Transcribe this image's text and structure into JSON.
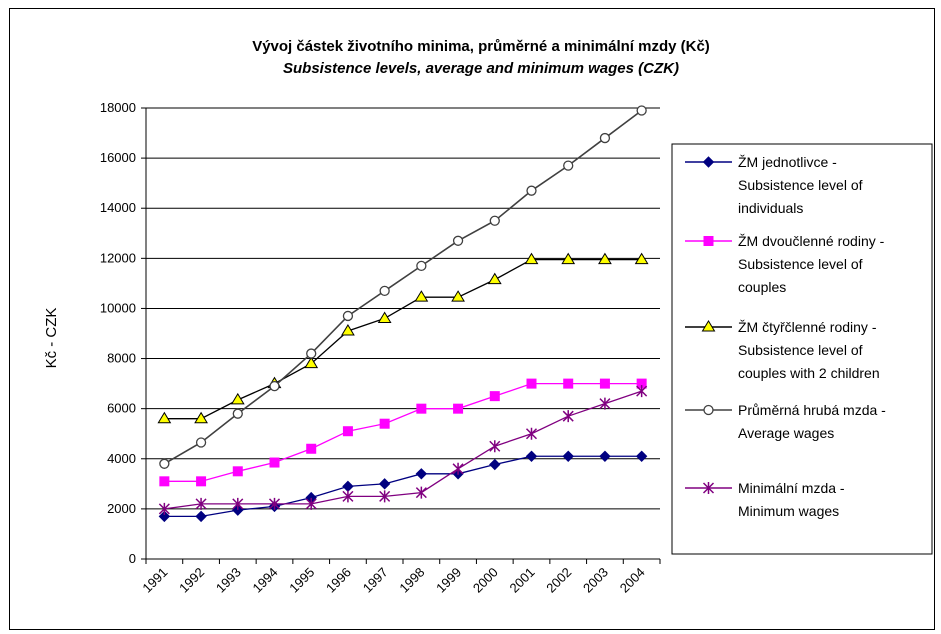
{
  "chart_data": {
    "type": "line",
    "title": "Vývoj částek životního minima, průměrné a minimální mzdy (Kč)",
    "subtitle": "Subsistence levels, average and minimum wages (CZK)",
    "xlabel": "",
    "ylabel": "Kč - CZK",
    "ylim": [
      0,
      18000
    ],
    "yticks": [
      "0",
      "2000",
      "4000",
      "6000",
      "8000",
      "10000",
      "12000",
      "14000",
      "16000",
      "18000"
    ],
    "categories": [
      "1991",
      "1992",
      "1993",
      "1994",
      "1995",
      "1996",
      "1997",
      "1998",
      "1999",
      "2000",
      "2001",
      "2002",
      "2003",
      "2004"
    ],
    "grid": "horizontal",
    "legend_position": "right",
    "series": [
      {
        "name": "ŽM jednotlivce - Subsistence level of individuals",
        "legend_lines": [
          "ŽM jednotlivce -",
          "Subsistence level of",
          "individuals"
        ],
        "color": "#000080",
        "marker": "diamond",
        "values": [
          1700,
          1700,
          1950,
          2100,
          2450,
          2900,
          3000,
          3400,
          3400,
          3770,
          4100,
          4100,
          4100,
          4100
        ]
      },
      {
        "name": "ŽM dvoučlenné rodiny - Subsistence level of couples",
        "legend_lines": [
          "ŽM dvoučlenné rodiny -",
          "Subsistence level of",
          "couples"
        ],
        "color": "#ff00ff",
        "marker": "square",
        "values": [
          3100,
          3100,
          3500,
          3850,
          4400,
          5100,
          5400,
          6000,
          6000,
          6500,
          7000,
          7000,
          7000,
          7000
        ]
      },
      {
        "name": "ŽM čtyřčlenné rodiny - Subsistence level of couples with 2 children",
        "legend_lines": [
          "ŽM čtyřčlenné rodiny -",
          "Subsistence level of",
          "couples with 2 children"
        ],
        "color": "#000000",
        "marker_fill": "#ffff00",
        "marker": "triangle",
        "values": [
          5600,
          5600,
          6350,
          7000,
          7800,
          9100,
          9600,
          10450,
          10450,
          11150,
          11950,
          11950,
          11950,
          11950
        ]
      },
      {
        "name": "Průměrná hrubá mzda - Average wages",
        "legend_lines": [
          "Průměrná hrubá mzda -",
          "Average wages"
        ],
        "color": "#404040",
        "marker": "circle",
        "values": [
          3800,
          4650,
          5800,
          6900,
          8200,
          9700,
          10700,
          11700,
          12700,
          13500,
          14700,
          15700,
          16800,
          17900
        ]
      },
      {
        "name": "Minimální mzda - Minimum wages",
        "legend_lines": [
          "Minimální mzda -",
          "Minimum wages"
        ],
        "color": "#800080",
        "marker": "star",
        "values": [
          2000,
          2200,
          2200,
          2200,
          2200,
          2500,
          2500,
          2650,
          3600,
          4500,
          5000,
          5700,
          6200,
          6700
        ]
      }
    ]
  }
}
